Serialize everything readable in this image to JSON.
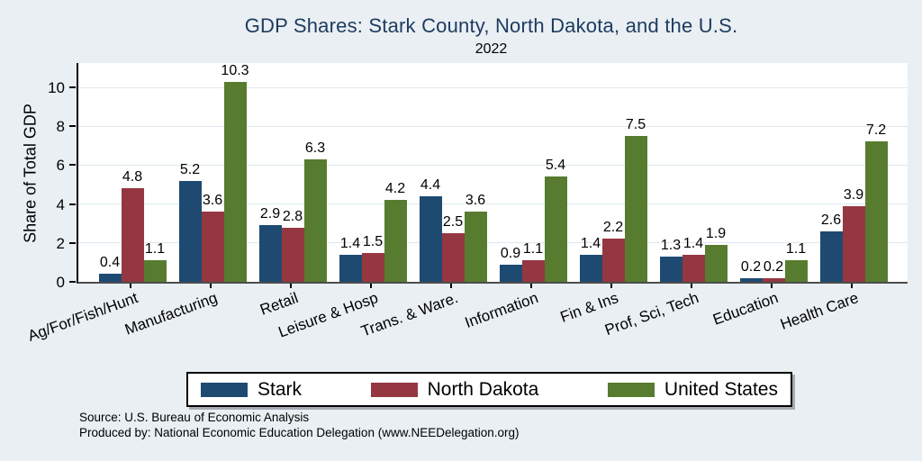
{
  "title": "GDP Shares: Stark County, North Dakota, and the U.S.",
  "subtitle": "2022",
  "footer": {
    "source_line": "Source: U.S. Bureau of Economic Analysis",
    "produced_line": "Produced by: National Economic Education Delegation (www.NEEDelegation.org)"
  },
  "colors": {
    "background": "#e9eff3",
    "plot_background": "#ffffff",
    "title": "#1e3a5f",
    "gridline": "#dde8ee",
    "stark": "#1e4a72",
    "north_dakota": "#943741",
    "united_states": "#577c2f"
  },
  "chart_data": {
    "type": "bar",
    "title": "GDP Shares: Stark County, North Dakota, and the U.S.",
    "subtitle": "2022",
    "ylabel": "Share of Total GDP",
    "xlabel": "",
    "categories": [
      "Ag/For/Fish/Hunt",
      "Manufacturing",
      "Retail",
      "Leisure & Hosp",
      "Trans. & Ware.",
      "Information",
      "Fin & Ins",
      "Prof, Sci, Tech",
      "Education",
      "Health Care"
    ],
    "series": [
      {
        "name": "Stark",
        "color": "#1e4a72",
        "values": [
          0.4,
          5.2,
          2.9,
          1.4,
          4.4,
          0.9,
          1.4,
          1.3,
          0.2,
          2.6
        ]
      },
      {
        "name": "North Dakota",
        "color": "#943741",
        "values": [
          4.8,
          3.6,
          2.8,
          1.5,
          2.5,
          1.1,
          2.2,
          1.4,
          0.2,
          3.9
        ]
      },
      {
        "name": "United States",
        "color": "#577c2f",
        "values": [
          1.1,
          10.3,
          6.3,
          4.2,
          3.6,
          5.4,
          7.5,
          1.9,
          1.1,
          7.2
        ]
      }
    ],
    "yticks": [
      0,
      2,
      4,
      6,
      8,
      10
    ],
    "ylim": [
      0,
      11.25
    ],
    "grid": true,
    "legend_position": "bottom",
    "bar_labels": true
  }
}
